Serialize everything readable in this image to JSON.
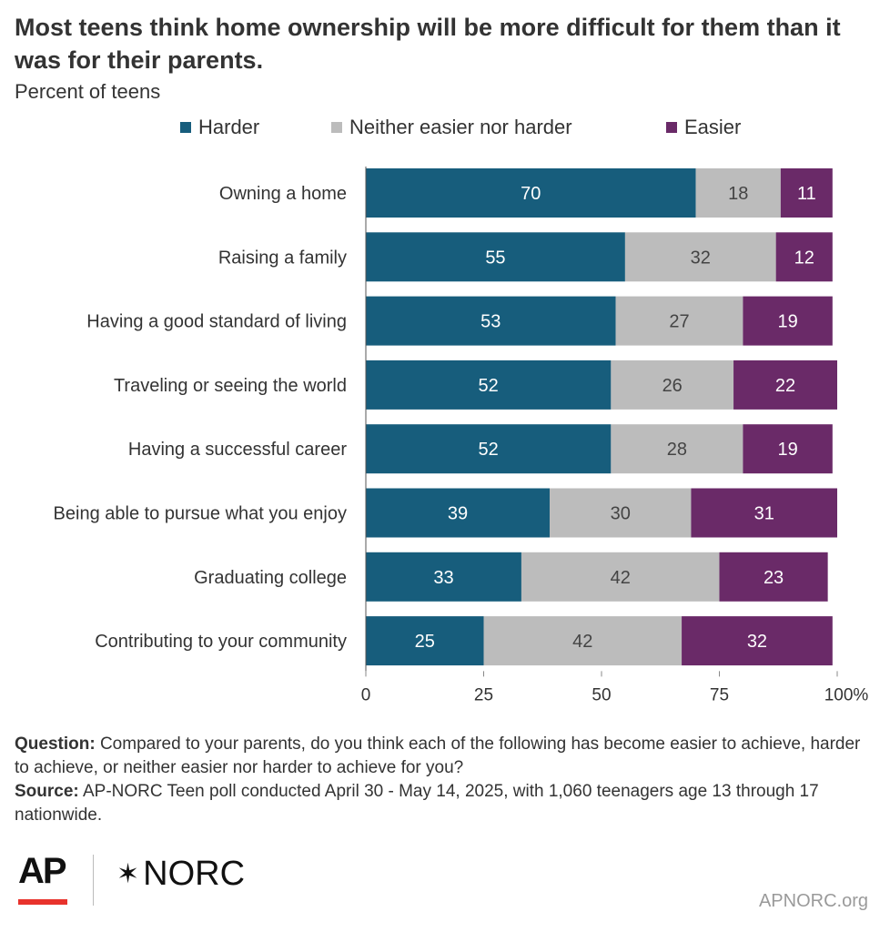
{
  "title": "Most teens think home ownership will be more difficult for them than it was for their parents.",
  "subtitle": "Percent of teens",
  "colors": {
    "harder": "#175d7c",
    "neither": "#bcbcbc",
    "easier": "#6a2a68"
  },
  "chart_data": {
    "type": "bar",
    "orientation": "horizontal",
    "stacked": true,
    "categories": [
      "Owning a home",
      "Raising a family",
      "Having a good standard of living",
      "Traveling or seeing the world",
      "Having a successful career",
      "Being able to pursue what you enjoy",
      "Graduating college",
      "Contributing to your community"
    ],
    "series": [
      {
        "name": "Harder",
        "color": "#175d7c",
        "values": [
          70,
          55,
          53,
          52,
          52,
          39,
          33,
          25
        ]
      },
      {
        "name": "Neither easier nor harder",
        "color": "#bcbcbc",
        "values": [
          18,
          32,
          27,
          26,
          28,
          30,
          42,
          42
        ]
      },
      {
        "name": "Easier",
        "color": "#6a2a68",
        "values": [
          11,
          12,
          19,
          22,
          19,
          31,
          23,
          32
        ]
      }
    ],
    "xlim": [
      0,
      100
    ],
    "xticks": [
      "0",
      "25",
      "50",
      "75",
      "100%"
    ],
    "legend": "top"
  },
  "footer": {
    "question_label": "Question:",
    "question_text": " Compared to your parents, do you think each of the following has become easier to achieve, harder to achieve, or neither easier nor harder to achieve for you?",
    "source_label": "Source:",
    "source_text": " AP-NORC Teen poll conducted April 30 - May 14, 2025, with 1,060 teenagers age 13 through 17 nationwide."
  },
  "logos": {
    "ap": "AP",
    "norc": "NORC",
    "site": "APNORC.org"
  }
}
